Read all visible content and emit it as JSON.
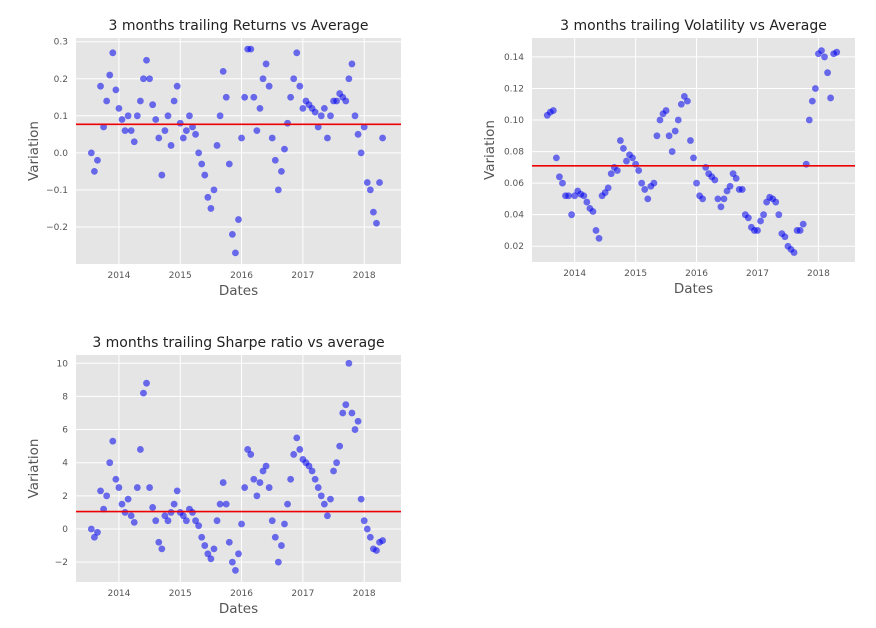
{
  "chart_data": [
    {
      "type": "scatter",
      "title": "3 months trailing Returns vs Average",
      "xlabel": "Dates",
      "ylabel": "Variation",
      "xlim": [
        2013.3,
        2018.6
      ],
      "ylim": [
        -0.3,
        0.31
      ],
      "xticks": [
        2014,
        2015,
        2016,
        2017,
        2018
      ],
      "xtick_labels": [
        "2014",
        "2015",
        "2016",
        "2017",
        "2018"
      ],
      "yticks": [
        -0.2,
        -0.1,
        0.0,
        0.1,
        0.2,
        0.3
      ],
      "ytick_labels": [
        "−0.2",
        "−0.1",
        "0.0",
        "0.1",
        "0.2",
        "0.3"
      ],
      "grid": true,
      "average": 0.077,
      "colors": {
        "points": "#0000ee",
        "average_line": "#ee0000"
      },
      "x": [
        2013.55,
        2013.6,
        2013.65,
        2013.7,
        2013.75,
        2013.8,
        2013.85,
        2013.9,
        2013.95,
        2014.0,
        2014.05,
        2014.1,
        2014.15,
        2014.2,
        2014.25,
        2014.3,
        2014.35,
        2014.4,
        2014.45,
        2014.5,
        2014.55,
        2014.6,
        2014.65,
        2014.7,
        2014.75,
        2014.8,
        2014.85,
        2014.9,
        2014.95,
        2015.0,
        2015.05,
        2015.1,
        2015.15,
        2015.2,
        2015.25,
        2015.3,
        2015.35,
        2015.4,
        2015.45,
        2015.5,
        2015.55,
        2015.6,
        2015.65,
        2015.7,
        2015.75,
        2015.8,
        2015.85,
        2015.9,
        2015.95,
        2016.0,
        2016.05,
        2016.1,
        2016.15,
        2016.2,
        2016.25,
        2016.3,
        2016.35,
        2016.4,
        2016.45,
        2016.5,
        2016.55,
        2016.6,
        2016.65,
        2016.7,
        2016.75,
        2016.8,
        2016.85,
        2016.9,
        2016.95,
        2017.0,
        2017.05,
        2017.1,
        2017.15,
        2017.2,
        2017.25,
        2017.3,
        2017.35,
        2017.4,
        2017.45,
        2017.5,
        2017.55,
        2017.6,
        2017.65,
        2017.7,
        2017.75,
        2017.8,
        2017.85,
        2017.9,
        2017.95,
        2018.0,
        2018.05,
        2018.1,
        2018.15,
        2018.2,
        2018.25,
        2018.3
      ],
      "y": [
        0.0,
        -0.05,
        -0.02,
        0.18,
        0.07,
        0.14,
        0.21,
        0.27,
        0.17,
        0.12,
        0.09,
        0.06,
        0.1,
        0.06,
        0.03,
        0.1,
        0.14,
        0.2,
        0.25,
        0.2,
        0.13,
        0.09,
        0.04,
        -0.06,
        0.06,
        0.1,
        0.02,
        0.14,
        0.18,
        0.08,
        0.04,
        0.06,
        0.1,
        0.07,
        0.05,
        0.0,
        -0.03,
        -0.06,
        -0.12,
        -0.15,
        -0.1,
        0.02,
        0.1,
        0.22,
        0.15,
        -0.03,
        -0.22,
        -0.27,
        -0.18,
        0.04,
        0.15,
        0.28,
        0.28,
        0.15,
        0.06,
        0.12,
        0.2,
        0.24,
        0.18,
        0.04,
        -0.02,
        -0.1,
        -0.05,
        0.01,
        0.08,
        0.15,
        0.2,
        0.27,
        0.18,
        0.12,
        0.14,
        0.13,
        0.12,
        0.11,
        0.07,
        0.1,
        0.12,
        0.04,
        0.1,
        0.14,
        0.14,
        0.16,
        0.15,
        0.14,
        0.2,
        0.24,
        0.1,
        0.05,
        0.0,
        0.07,
        -0.08,
        -0.1,
        -0.16,
        -0.19,
        -0.08,
        0.04
      ]
    },
    {
      "type": "scatter",
      "title": "3 months trailing Volatility vs Average",
      "xlabel": "Dates",
      "ylabel": "Variation",
      "xlim": [
        2013.3,
        2018.6
      ],
      "ylim": [
        0.01,
        0.152
      ],
      "xticks": [
        2014,
        2015,
        2016,
        2017,
        2018
      ],
      "xtick_labels": [
        "2014",
        "2015",
        "2016",
        "2017",
        "2018"
      ],
      "yticks": [
        0.02,
        0.04,
        0.06,
        0.08,
        0.1,
        0.12,
        0.14
      ],
      "ytick_labels": [
        "0.02",
        "0.04",
        "0.06",
        "0.08",
        "0.10",
        "0.12",
        "0.14"
      ],
      "grid": true,
      "average": 0.071,
      "colors": {
        "points": "#0000ee",
        "average_line": "#ee0000"
      },
      "x": [
        2013.55,
        2013.6,
        2013.65,
        2013.7,
        2013.75,
        2013.8,
        2013.85,
        2013.9,
        2013.95,
        2014.0,
        2014.05,
        2014.1,
        2014.15,
        2014.2,
        2014.25,
        2014.3,
        2014.35,
        2014.4,
        2014.45,
        2014.5,
        2014.55,
        2014.6,
        2014.65,
        2014.7,
        2014.75,
        2014.8,
        2014.85,
        2014.9,
        2014.95,
        2015.0,
        2015.05,
        2015.1,
        2015.15,
        2015.2,
        2015.25,
        2015.3,
        2015.35,
        2015.4,
        2015.45,
        2015.5,
        2015.55,
        2015.6,
        2015.65,
        2015.7,
        2015.75,
        2015.8,
        2015.85,
        2015.9,
        2015.95,
        2016.0,
        2016.05,
        2016.1,
        2016.15,
        2016.2,
        2016.25,
        2016.3,
        2016.35,
        2016.4,
        2016.45,
        2016.5,
        2016.55,
        2016.6,
        2016.65,
        2016.7,
        2016.75,
        2016.8,
        2016.85,
        2016.9,
        2016.95,
        2017.0,
        2017.05,
        2017.1,
        2017.15,
        2017.2,
        2017.25,
        2017.3,
        2017.35,
        2017.4,
        2017.45,
        2017.5,
        2017.55,
        2017.6,
        2017.65,
        2017.7,
        2017.75,
        2017.8,
        2017.85,
        2017.9,
        2017.95,
        2018.0,
        2018.05,
        2018.1,
        2018.15,
        2018.2,
        2018.25,
        2018.3
      ],
      "y": [
        0.103,
        0.105,
        0.106,
        0.076,
        0.064,
        0.06,
        0.052,
        0.052,
        0.04,
        0.052,
        0.055,
        0.053,
        0.052,
        0.048,
        0.044,
        0.042,
        0.03,
        0.025,
        0.052,
        0.054,
        0.057,
        0.066,
        0.07,
        0.068,
        0.087,
        0.082,
        0.074,
        0.078,
        0.076,
        0.072,
        0.068,
        0.06,
        0.056,
        0.05,
        0.058,
        0.06,
        0.09,
        0.1,
        0.104,
        0.106,
        0.09,
        0.08,
        0.093,
        0.1,
        0.11,
        0.115,
        0.112,
        0.087,
        0.076,
        0.06,
        0.052,
        0.05,
        0.07,
        0.066,
        0.064,
        0.062,
        0.05,
        0.045,
        0.05,
        0.055,
        0.058,
        0.066,
        0.063,
        0.056,
        0.056,
        0.04,
        0.038,
        0.032,
        0.03,
        0.03,
        0.036,
        0.04,
        0.048,
        0.051,
        0.05,
        0.048,
        0.04,
        0.028,
        0.026,
        0.02,
        0.018,
        0.016,
        0.03,
        0.03,
        0.034,
        0.072,
        0.1,
        0.112,
        0.12,
        0.142,
        0.144,
        0.14,
        0.13,
        0.114,
        0.142,
        0.143
      ]
    },
    {
      "type": "scatter",
      "title": "3 months trailing Sharpe ratio vs average",
      "xlabel": "Dates",
      "ylabel": "Variation",
      "xlim": [
        2013.3,
        2018.6
      ],
      "ylim": [
        -3.2,
        10.5
      ],
      "xticks": [
        2014,
        2015,
        2016,
        2017,
        2018
      ],
      "xtick_labels": [
        "2014",
        "2015",
        "2016",
        "2017",
        "2018"
      ],
      "yticks": [
        -2,
        0,
        2,
        4,
        6,
        8,
        10
      ],
      "ytick_labels": [
        "−2",
        "0",
        "2",
        "4",
        "6",
        "8",
        "10"
      ],
      "grid": true,
      "average": 1.05,
      "colors": {
        "points": "#0000ee",
        "average_line": "#ee0000"
      },
      "x": [
        2013.55,
        2013.6,
        2013.65,
        2013.7,
        2013.75,
        2013.8,
        2013.85,
        2013.9,
        2013.95,
        2014.0,
        2014.05,
        2014.1,
        2014.15,
        2014.2,
        2014.25,
        2014.3,
        2014.35,
        2014.4,
        2014.45,
        2014.5,
        2014.55,
        2014.6,
        2014.65,
        2014.7,
        2014.75,
        2014.8,
        2014.85,
        2014.9,
        2014.95,
        2015.0,
        2015.05,
        2015.1,
        2015.15,
        2015.2,
        2015.25,
        2015.3,
        2015.35,
        2015.4,
        2015.45,
        2015.5,
        2015.55,
        2015.6,
        2015.65,
        2015.7,
        2015.75,
        2015.8,
        2015.85,
        2015.9,
        2015.95,
        2016.0,
        2016.05,
        2016.1,
        2016.15,
        2016.2,
        2016.25,
        2016.3,
        2016.35,
        2016.4,
        2016.45,
        2016.5,
        2016.55,
        2016.6,
        2016.65,
        2016.7,
        2016.75,
        2016.8,
        2016.85,
        2016.9,
        2016.95,
        2017.0,
        2017.05,
        2017.1,
        2017.15,
        2017.2,
        2017.25,
        2017.3,
        2017.35,
        2017.4,
        2017.45,
        2017.5,
        2017.55,
        2017.6,
        2017.65,
        2017.7,
        2017.75,
        2017.8,
        2017.85,
        2017.9,
        2017.95,
        2018.0,
        2018.05,
        2018.1,
        2018.15,
        2018.2,
        2018.25,
        2018.3
      ],
      "y": [
        0.0,
        -0.5,
        -0.2,
        2.3,
        1.2,
        2.0,
        4.0,
        5.3,
        3.0,
        2.5,
        1.5,
        1.0,
        1.8,
        0.8,
        0.4,
        2.5,
        4.8,
        8.2,
        8.8,
        2.5,
        1.3,
        0.5,
        -0.8,
        -1.2,
        0.8,
        0.5,
        1.0,
        1.5,
        2.3,
        1.0,
        0.8,
        0.5,
        1.2,
        1.0,
        0.5,
        0.2,
        -0.5,
        -1.0,
        -1.5,
        -1.8,
        -1.2,
        0.5,
        1.5,
        2.8,
        1.5,
        -0.8,
        -2.0,
        -2.5,
        -1.5,
        0.3,
        2.5,
        4.8,
        4.5,
        3.0,
        2.0,
        2.8,
        3.5,
        3.8,
        2.5,
        0.5,
        -0.5,
        -2.0,
        -1.0,
        0.3,
        1.5,
        3.0,
        4.5,
        5.5,
        4.8,
        4.2,
        4.0,
        3.8,
        3.5,
        3.0,
        2.5,
        2.0,
        1.5,
        0.8,
        1.8,
        3.5,
        4.0,
        5.0,
        7.0,
        7.5,
        10.0,
        7.0,
        6.0,
        6.5,
        1.8,
        0.5,
        0.0,
        -0.5,
        -1.2,
        -1.3,
        -0.8,
        -0.7
      ]
    }
  ]
}
